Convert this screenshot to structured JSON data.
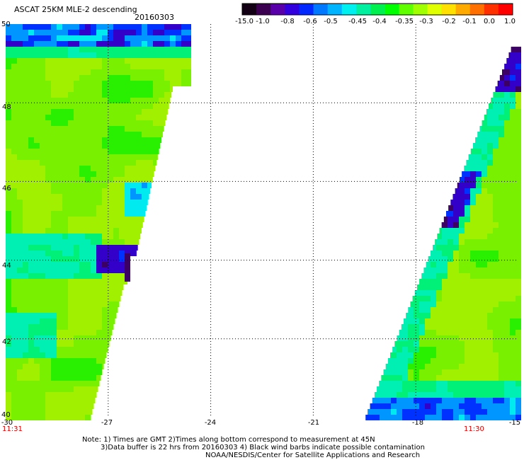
{
  "header": {
    "title": "ASCAT 25KM MLE-2 descending",
    "date": "20160303"
  },
  "colorbar": {
    "labels": [
      "-15.0",
      "-1.0",
      "-0.8",
      "-0.6",
      "-0.5",
      "-0.45",
      "-0.4",
      "-0.35",
      "-0.3",
      "-0.2",
      "-0.1",
      "0.0",
      "1.0"
    ],
    "colors": [
      "#140014",
      "#3c0050",
      "#5a00aa",
      "#3200dc",
      "#0028ff",
      "#0078ff",
      "#00b4ff",
      "#00f0f0",
      "#00f0a0",
      "#00f050",
      "#00ff00",
      "#60ff00",
      "#a0ff00",
      "#e0ff00",
      "#ffe000",
      "#ffaa00",
      "#ff7000",
      "#ff3000",
      "#ff0000"
    ]
  },
  "map": {
    "lat_labels": [
      "50",
      "48",
      "46",
      "44",
      "42",
      "40"
    ],
    "lon_labels": [
      "-30",
      "-27",
      "-24",
      "-21",
      "-18",
      "-15"
    ],
    "lat_range": [
      40,
      50
    ],
    "lon_range": [
      -30,
      -15
    ],
    "swath_times": {
      "left": "11:31",
      "right": "11:30"
    }
  },
  "notes": {
    "line1": "Note: 1) Times are GMT 2)Times along bottom correspond to measurement at 45N",
    "line2": "3)Data buffer is 22 hrs from 20160303 4) Black wind barbs indicate possible contamination",
    "line3": "NOAA/NESDIS/Center for Satellite Applications and Research"
  }
}
